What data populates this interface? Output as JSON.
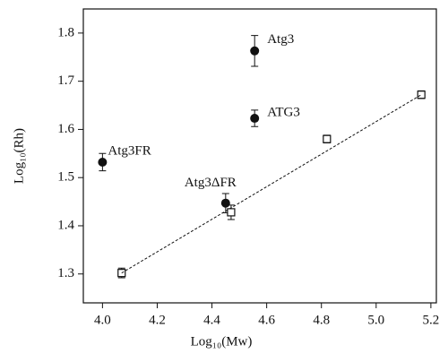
{
  "chart_data": {
    "type": "scatter",
    "x_label": "Log₁₀(Mw)",
    "y_label": "Log₁₀(Rh)",
    "xlim": [
      3.93,
      5.22
    ],
    "xticks": [
      {
        "value": 4.0,
        "label": "4.0"
      },
      4.2,
      4.4,
      4.6,
      4.8,
      {
        "value": 5.0,
        "label": "5.0"
      },
      5.2
    ],
    "ylim": [
      1.24,
      1.85
    ],
    "yticks": [
      1.3,
      1.4,
      1.5,
      1.6,
      1.7,
      1.8
    ],
    "series": [
      {
        "marker": "circle",
        "color": "#111111",
        "x": [
          4.0,
          4.45,
          4.556,
          4.556
        ],
        "values": [
          1.532,
          1.447,
          1.623,
          1.763
        ],
        "errors": [
          0.018,
          0.02,
          0.017,
          0.032
        ],
        "labels": [
          "Atg3FR",
          "Atg3ΔFR",
          "ATG3",
          "Atg3"
        ]
      },
      {
        "marker": "square",
        "color": "#111111",
        "x": [
          4.07,
          4.47,
          4.82,
          5.165
        ],
        "values": [
          1.302,
          1.428,
          1.58,
          1.672
        ],
        "errors": [
          0.01,
          0.015,
          0.008,
          0.008
        ]
      },
      {
        "marker": "dashed-line",
        "color": "#111111",
        "x": [
          4.07,
          5.165
        ],
        "values": [
          1.302,
          1.672
        ]
      }
    ]
  }
}
